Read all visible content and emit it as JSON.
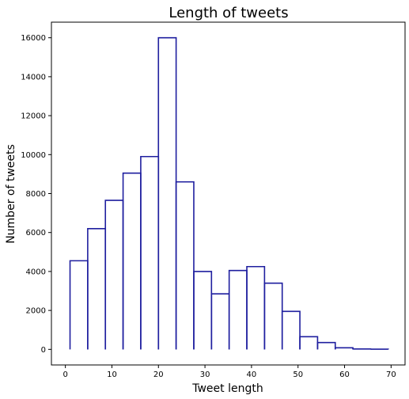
{
  "chart_data": {
    "type": "bar",
    "chart_kind": "histogram-step",
    "title": "Length of tweets",
    "xlabel": "Tweet length",
    "ylabel": "Number of tweets",
    "xlim": [
      -3,
      73
    ],
    "ylim": [
      -800,
      16800
    ],
    "xticks": [
      0,
      10,
      20,
      30,
      40,
      50,
      60,
      70
    ],
    "yticks": [
      0,
      2000,
      4000,
      6000,
      8000,
      10000,
      12000,
      14000,
      16000
    ],
    "bin_edges": [
      1,
      4.8,
      8.6,
      12.4,
      16.2,
      20.0,
      23.8,
      27.6,
      31.4,
      35.2,
      39.0,
      42.8,
      46.6,
      50.4,
      54.2,
      58.0,
      61.8,
      65.6,
      69.4
    ],
    "values": [
      4550,
      6200,
      7650,
      9050,
      9900,
      16000,
      8600,
      4000,
      2850,
      4050,
      4250,
      3400,
      1950,
      650,
      350,
      80,
      20,
      10
    ],
    "grid": false,
    "colors": {
      "edge": "#1f1f9f"
    }
  }
}
